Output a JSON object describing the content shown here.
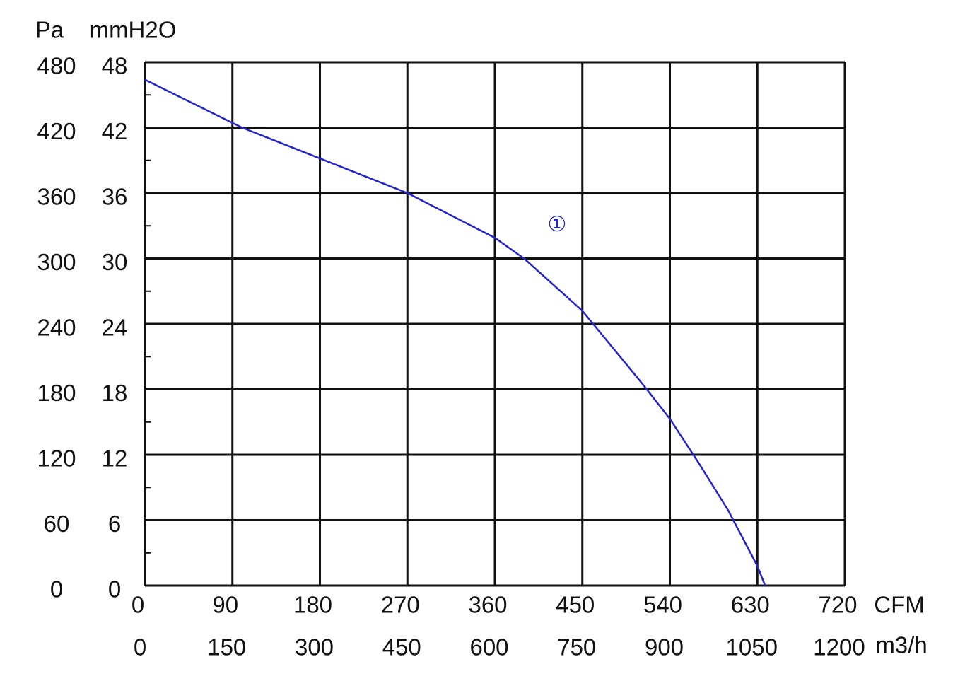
{
  "chart_data": {
    "type": "line",
    "xlabel": "CFM",
    "ylabel": "Pa",
    "x2label": "m3/h",
    "y2label": "mmH2O",
    "annotations": [
      "①"
    ],
    "x": [
      0,
      100,
      270,
      360,
      390,
      450,
      510,
      540,
      570,
      600,
      630,
      638
    ],
    "series": [
      {
        "color": "#2424cc",
        "values": [
          464,
          420,
          360,
          319,
          300,
          252,
          187,
          153,
          112,
          69,
          18,
          0
        ]
      }
    ],
    "xlim": [
      0,
      720
    ],
    "xticks": [
      0,
      90,
      180,
      270,
      360,
      450,
      540,
      630,
      720
    ],
    "ylim": [
      0,
      480
    ],
    "yticks": [
      0,
      60,
      120,
      180,
      240,
      300,
      360,
      420,
      480
    ],
    "yminorticks": [
      30,
      90,
      150,
      210,
      270,
      330,
      390,
      450
    ],
    "x2lim": [
      0,
      1200
    ],
    "x2ticks": [
      0,
      150,
      300,
      450,
      600,
      750,
      900,
      1050,
      1200
    ],
    "y2lim": [
      0,
      48
    ],
    "y2ticks": [
      0,
      6,
      12,
      18,
      24,
      30,
      36,
      42,
      48
    ],
    "grid": true
  }
}
